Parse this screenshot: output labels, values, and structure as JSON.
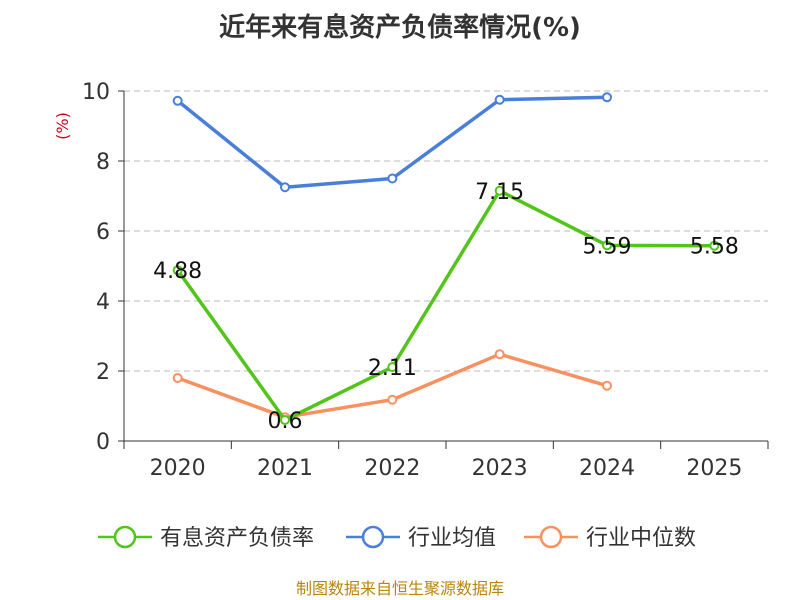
{
  "chart_data": {
    "type": "line",
    "title": "近年来有息资产负债率情况(%)",
    "ylabel": "(%)",
    "xlabel": "",
    "categories": [
      "2020",
      "2021",
      "2022",
      "2023",
      "2024",
      "2025"
    ],
    "ylim": [
      0,
      10
    ],
    "yticks": [
      0,
      2,
      4,
      6,
      8,
      10
    ],
    "grid": true,
    "legend_position": "bottom",
    "series": [
      {
        "name": "有息资产负债率",
        "color": "#52c41a",
        "values": [
          4.88,
          0.6,
          2.11,
          7.15,
          5.59,
          5.58
        ],
        "labels": [
          "4.88",
          "0.6",
          "2.11",
          "7.15",
          "5.59",
          "5.58"
        ]
      },
      {
        "name": "行业均值",
        "color": "#4a7fd9",
        "values": [
          9.72,
          7.25,
          7.5,
          9.75,
          9.82,
          null
        ]
      },
      {
        "name": "行业中位数",
        "color": "#f89160",
        "values": [
          1.8,
          0.68,
          1.18,
          2.48,
          1.58,
          null
        ]
      }
    ]
  },
  "source": "制图数据来自恒生聚源数据库"
}
